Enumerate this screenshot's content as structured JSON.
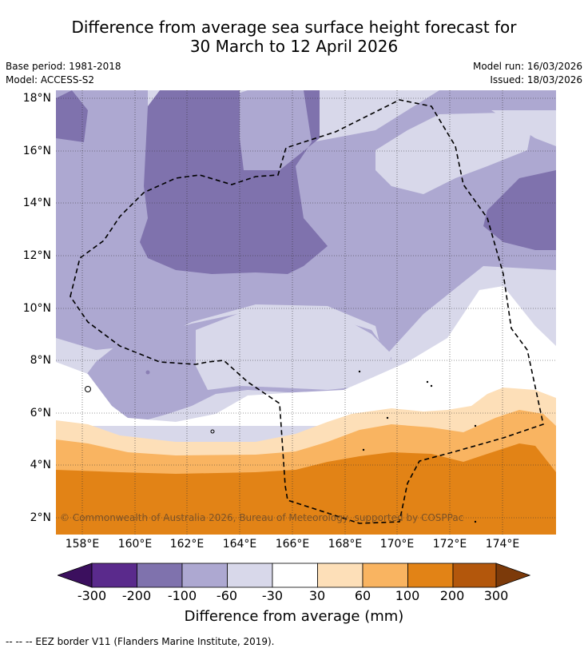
{
  "title": {
    "line1": "Difference from average sea surface height forecast for",
    "line2": "30 March to 12 April 2026"
  },
  "meta": {
    "base_period": "Base period: 1981-2018",
    "model": "Model: ACCESS-S2",
    "model_run": "Model run: 16/03/2026",
    "issued": "Issued: 18/03/2026"
  },
  "axes": {
    "lat_labels": [
      "18°N",
      "16°N",
      "14°N",
      "12°N",
      "10°N",
      "8°N",
      "6°N",
      "4°N",
      "2°N"
    ],
    "lon_labels": [
      "158°E",
      "160°E",
      "162°E",
      "164°E",
      "166°E",
      "168°E",
      "170°E",
      "172°E",
      "174°E"
    ]
  },
  "map": {
    "copyright": "© Commonwealth of Australia 2026, Bureau of Meteorology, supported by COSPPac"
  },
  "colorbar": {
    "title": "Difference from average (mm)",
    "tick_labels": [
      "-300",
      "-200",
      "-100",
      "-60",
      "-30",
      "30",
      "60",
      "100",
      "200",
      "300"
    ],
    "colors": [
      "#3b0f5e",
      "#5a2a8c",
      "#7f72ad",
      "#ada8d1",
      "#d8d8ea",
      "#ffffff",
      "#fddfb8",
      "#f9b461",
      "#e28316",
      "#b3570c",
      "#7c3a0a"
    ]
  },
  "footnote": "--  --  -- EEZ border V11 (Flanders Marine Institute, 2019)."
}
